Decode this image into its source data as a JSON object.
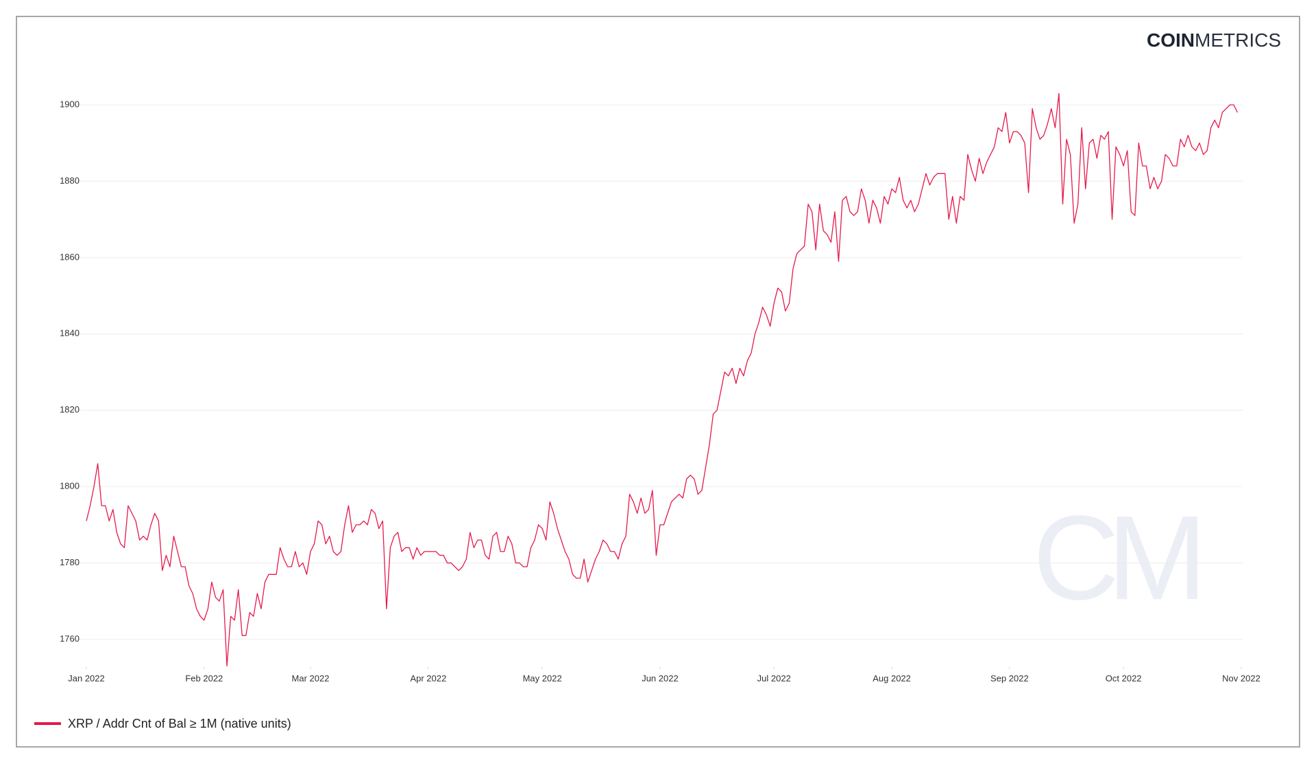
{
  "chart_data": {
    "type": "line",
    "logo": [
      "COIN",
      "METRICS"
    ],
    "watermark": "CM",
    "x": [
      "2022-01-01",
      "2022-01-02",
      "2022-01-03",
      "2022-01-04",
      "2022-01-05",
      "2022-01-06",
      "2022-01-07",
      "2022-01-08",
      "2022-01-09",
      "2022-01-10",
      "2022-01-11",
      "2022-01-12",
      "2022-01-13",
      "2022-01-14",
      "2022-01-15",
      "2022-01-16",
      "2022-01-17",
      "2022-01-18",
      "2022-01-19",
      "2022-01-20",
      "2022-01-21",
      "2022-01-22",
      "2022-01-23",
      "2022-01-24",
      "2022-01-25",
      "2022-01-26",
      "2022-01-27",
      "2022-01-28",
      "2022-01-29",
      "2022-01-30",
      "2022-01-31",
      "2022-02-01",
      "2022-02-02",
      "2022-02-03",
      "2022-02-04",
      "2022-02-05",
      "2022-02-06",
      "2022-02-07",
      "2022-02-08",
      "2022-02-09",
      "2022-02-10",
      "2022-02-11",
      "2022-02-12",
      "2022-02-13",
      "2022-02-14",
      "2022-02-15",
      "2022-02-16",
      "2022-02-17",
      "2022-02-18",
      "2022-02-19",
      "2022-02-20",
      "2022-02-21",
      "2022-02-22",
      "2022-02-23",
      "2022-02-24",
      "2022-02-25",
      "2022-02-26",
      "2022-02-27",
      "2022-02-28",
      "2022-03-01",
      "2022-03-02",
      "2022-03-03",
      "2022-03-04",
      "2022-03-05",
      "2022-03-06",
      "2022-03-07",
      "2022-03-08",
      "2022-03-09",
      "2022-03-10",
      "2022-03-11",
      "2022-03-12",
      "2022-03-13",
      "2022-03-14",
      "2022-03-15",
      "2022-03-16",
      "2022-03-17",
      "2022-03-18",
      "2022-03-19",
      "2022-03-20",
      "2022-03-21",
      "2022-03-22",
      "2022-03-23",
      "2022-03-24",
      "2022-03-25",
      "2022-03-26",
      "2022-03-27",
      "2022-03-28",
      "2022-03-29",
      "2022-03-30",
      "2022-03-31",
      "2022-04-01",
      "2022-04-02",
      "2022-04-03",
      "2022-04-04",
      "2022-04-05",
      "2022-04-06",
      "2022-04-07",
      "2022-04-08",
      "2022-04-09",
      "2022-04-10",
      "2022-04-11",
      "2022-04-12",
      "2022-04-13",
      "2022-04-14",
      "2022-04-15",
      "2022-04-16",
      "2022-04-17",
      "2022-04-18",
      "2022-04-19",
      "2022-04-20",
      "2022-04-21",
      "2022-04-22",
      "2022-04-23",
      "2022-04-24",
      "2022-04-25",
      "2022-04-26",
      "2022-04-27",
      "2022-04-28",
      "2022-04-29",
      "2022-04-30",
      "2022-05-01",
      "2022-05-02",
      "2022-05-03",
      "2022-05-04",
      "2022-05-05",
      "2022-05-06",
      "2022-05-07",
      "2022-05-08",
      "2022-05-09",
      "2022-05-10",
      "2022-05-11",
      "2022-05-12",
      "2022-05-13",
      "2022-05-14",
      "2022-05-15",
      "2022-05-16",
      "2022-05-17",
      "2022-05-18",
      "2022-05-19",
      "2022-05-20",
      "2022-05-21",
      "2022-05-22",
      "2022-05-23",
      "2022-05-24",
      "2022-05-25",
      "2022-05-26",
      "2022-05-27",
      "2022-05-28",
      "2022-05-29",
      "2022-05-30",
      "2022-05-31",
      "2022-06-01",
      "2022-06-02",
      "2022-06-03",
      "2022-06-04",
      "2022-06-05",
      "2022-06-06",
      "2022-06-07",
      "2022-06-08",
      "2022-06-09",
      "2022-06-10",
      "2022-06-11",
      "2022-06-12",
      "2022-06-13",
      "2022-06-14",
      "2022-06-15",
      "2022-06-16",
      "2022-06-17",
      "2022-06-18",
      "2022-06-19",
      "2022-06-20",
      "2022-06-21",
      "2022-06-22",
      "2022-06-23",
      "2022-06-24",
      "2022-06-25",
      "2022-06-26",
      "2022-06-27",
      "2022-06-28",
      "2022-06-29",
      "2022-06-30",
      "2022-07-01",
      "2022-07-02",
      "2022-07-03",
      "2022-07-04",
      "2022-07-05",
      "2022-07-06",
      "2022-07-07",
      "2022-07-08",
      "2022-07-09",
      "2022-07-10",
      "2022-07-11",
      "2022-07-12",
      "2022-07-13",
      "2022-07-14",
      "2022-07-15",
      "2022-07-16",
      "2022-07-17",
      "2022-07-18",
      "2022-07-19",
      "2022-07-20",
      "2022-07-21",
      "2022-07-22",
      "2022-07-23",
      "2022-07-24",
      "2022-07-25",
      "2022-07-26",
      "2022-07-27",
      "2022-07-28",
      "2022-07-29",
      "2022-07-30",
      "2022-07-31",
      "2022-08-01",
      "2022-08-02",
      "2022-08-03",
      "2022-08-04",
      "2022-08-05",
      "2022-08-06",
      "2022-08-07",
      "2022-08-08",
      "2022-08-09",
      "2022-08-10",
      "2022-08-11",
      "2022-08-12",
      "2022-08-13",
      "2022-08-14",
      "2022-08-15",
      "2022-08-16",
      "2022-08-17",
      "2022-08-18",
      "2022-08-19",
      "2022-08-20",
      "2022-08-21",
      "2022-08-22",
      "2022-08-23",
      "2022-08-24",
      "2022-08-25",
      "2022-08-26",
      "2022-08-27",
      "2022-08-28",
      "2022-08-29",
      "2022-08-30",
      "2022-08-31",
      "2022-09-01",
      "2022-09-02",
      "2022-09-03",
      "2022-09-04",
      "2022-09-05",
      "2022-09-06",
      "2022-09-07",
      "2022-09-08",
      "2022-09-09",
      "2022-09-10",
      "2022-09-11",
      "2022-09-12",
      "2022-09-13",
      "2022-09-14",
      "2022-09-15",
      "2022-09-16",
      "2022-09-17",
      "2022-09-18",
      "2022-09-19",
      "2022-09-20",
      "2022-09-21",
      "2022-09-22",
      "2022-09-23",
      "2022-09-24",
      "2022-09-25",
      "2022-09-26",
      "2022-09-27",
      "2022-09-28",
      "2022-09-29",
      "2022-09-30",
      "2022-10-01",
      "2022-10-02",
      "2022-10-03",
      "2022-10-04",
      "2022-10-05",
      "2022-10-06",
      "2022-10-07",
      "2022-10-08",
      "2022-10-09",
      "2022-10-10",
      "2022-10-11",
      "2022-10-12",
      "2022-10-13",
      "2022-10-14",
      "2022-10-15",
      "2022-10-16",
      "2022-10-17",
      "2022-10-18",
      "2022-10-19",
      "2022-10-20",
      "2022-10-21",
      "2022-10-22",
      "2022-10-23",
      "2022-10-24",
      "2022-10-25",
      "2022-10-26",
      "2022-10-27",
      "2022-10-28",
      "2022-10-29",
      "2022-10-30",
      "2022-10-31"
    ],
    "series": [
      {
        "name": "XRP / Addr Cnt of Bal ≥ 1M (native units)",
        "color": "#e5194b",
        "values": [
          1791,
          1795,
          1800,
          1806,
          1795,
          1795,
          1791,
          1794,
          1788,
          1785,
          1784,
          1795,
          1793,
          1791,
          1786,
          1787,
          1786,
          1790,
          1793,
          1791,
          1778,
          1782,
          1779,
          1787,
          1783,
          1779,
          1779,
          1774,
          1772,
          1768,
          1766,
          1765,
          1768,
          1775,
          1771,
          1770,
          1773,
          1753,
          1766,
          1765,
          1773,
          1761,
          1761,
          1767,
          1766,
          1772,
          1768,
          1775,
          1777,
          1777,
          1777,
          1784,
          1781,
          1779,
          1779,
          1783,
          1779,
          1780,
          1777,
          1783,
          1785,
          1791,
          1790,
          1785,
          1787,
          1783,
          1782,
          1783,
          1790,
          1795,
          1788,
          1790,
          1790,
          1791,
          1790,
          1794,
          1793,
          1789,
          1791,
          1768,
          1784,
          1787,
          1788,
          1783,
          1784,
          1784,
          1781,
          1784,
          1782,
          1783,
          1783,
          1783,
          1783,
          1782,
          1782,
          1780,
          1780,
          1779,
          1778,
          1779,
          1781,
          1788,
          1784,
          1786,
          1786,
          1782,
          1781,
          1787,
          1788,
          1783,
          1783,
          1787,
          1785,
          1780,
          1780,
          1779,
          1779,
          1784,
          1786,
          1790,
          1789,
          1786,
          1796,
          1793,
          1789,
          1786,
          1783,
          1781,
          1777,
          1776,
          1776,
          1781,
          1775,
          1778,
          1781,
          1783,
          1786,
          1785,
          1783,
          1783,
          1781,
          1785,
          1787,
          1798,
          1796,
          1793,
          1797,
          1793,
          1794,
          1799,
          1782,
          1790,
          1790,
          1793,
          1796,
          1797,
          1798,
          1797,
          1802,
          1803,
          1802,
          1798,
          1799,
          1805,
          1811,
          1819,
          1820,
          1825,
          1830,
          1829,
          1831,
          1827,
          1831,
          1829,
          1833,
          1835,
          1840,
          1843,
          1847,
          1845,
          1842,
          1848,
          1852,
          1851,
          1846,
          1848,
          1857,
          1861,
          1862,
          1863,
          1874,
          1872,
          1862,
          1874,
          1867,
          1866,
          1864,
          1872,
          1859,
          1875,
          1876,
          1872,
          1871,
          1872,
          1878,
          1875,
          1869,
          1875,
          1873,
          1869,
          1876,
          1874,
          1878,
          1877,
          1881,
          1875,
          1873,
          1875,
          1872,
          1874,
          1878,
          1882,
          1879,
          1881,
          1882,
          1882,
          1882,
          1870,
          1876,
          1869,
          1876,
          1875,
          1887,
          1883,
          1880,
          1886,
          1882,
          1885,
          1887,
          1889,
          1894,
          1893,
          1898,
          1890,
          1893,
          1893,
          1892,
          1890,
          1877,
          1899,
          1894,
          1891,
          1892,
          1895,
          1899,
          1894,
          1903,
          1874,
          1891,
          1887,
          1869,
          1874,
          1894,
          1878,
          1890,
          1891,
          1886,
          1892,
          1891,
          1893,
          1870,
          1889,
          1887,
          1884,
          1888,
          1872,
          1871,
          1890,
          1884,
          1884,
          1878,
          1881,
          1878,
          1880,
          1887,
          1886,
          1884,
          1884,
          1891,
          1889,
          1892,
          1889,
          1888,
          1890,
          1887,
          1888,
          1894,
          1896,
          1894,
          1898,
          1899,
          1900,
          1900,
          1898
        ]
      }
    ],
    "xlim": [
      "2022-01-01",
      "2022-11-01"
    ],
    "xticks": [
      {
        "value": "2022-01-01",
        "label": "Jan 2022"
      },
      {
        "value": "2022-02-01",
        "label": "Feb 2022"
      },
      {
        "value": "2022-03-01",
        "label": "Mar 2022"
      },
      {
        "value": "2022-04-01",
        "label": "Apr 2022"
      },
      {
        "value": "2022-05-01",
        "label": "May 2022"
      },
      {
        "value": "2022-06-01",
        "label": "Jun 2022"
      },
      {
        "value": "2022-07-01",
        "label": "Jul 2022"
      },
      {
        "value": "2022-08-01",
        "label": "Aug 2022"
      },
      {
        "value": "2022-09-01",
        "label": "Sep 2022"
      },
      {
        "value": "2022-10-01",
        "label": "Oct 2022"
      },
      {
        "value": "2022-11-01",
        "label": "Nov 2022"
      }
    ],
    "ylim": [
      1752,
      1906
    ],
    "yticks": [
      1760,
      1780,
      1800,
      1820,
      1840,
      1860,
      1880,
      1900
    ],
    "grid": true,
    "legend": "bottom-left"
  }
}
